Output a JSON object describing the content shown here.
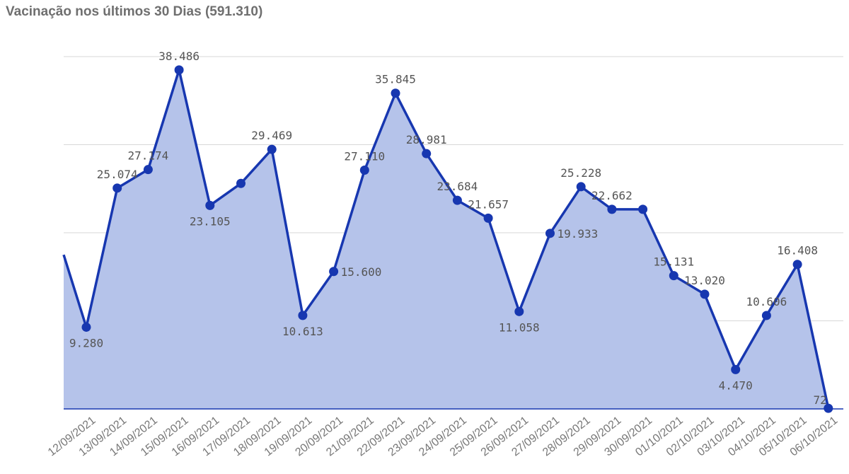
{
  "title": "Vacinação nos últimos 30 Dias (591.310)",
  "chart_data": {
    "type": "area",
    "title": "Vacinação nos últimos 30 Dias (591.310)",
    "xlabel": "",
    "ylabel": "",
    "ylim": [
      0,
      40000
    ],
    "grid": true,
    "legend": "none",
    "colors": {
      "line": "#1737b0",
      "fill": "#b5c3ea"
    },
    "categories": [
      "12/09/2021",
      "13/09/2021",
      "14/09/2021",
      "15/09/2021",
      "16/09/2021",
      "17/09/2021",
      "18/09/2021",
      "19/09/2021",
      "20/09/2021",
      "21/09/2021",
      "22/09/2021",
      "23/09/2021",
      "24/09/2021",
      "25/09/2021",
      "26/09/2021",
      "27/09/2021",
      "28/09/2021",
      "29/09/2021",
      "30/09/2021",
      "01/10/2021",
      "02/10/2021",
      "03/10/2021",
      "04/10/2021",
      "05/10/2021",
      "06/10/2021"
    ],
    "values": [
      9280,
      25074,
      27174,
      38486,
      23105,
      25600,
      29469,
      10613,
      15600,
      27110,
      35845,
      28981,
      23684,
      21657,
      11058,
      19933,
      25228,
      22662,
      22662,
      15131,
      13020,
      4470,
      10606,
      16408,
      72
    ],
    "labels": [
      "9.280",
      "25.074",
      "27.174",
      "38.486",
      "23.105",
      "",
      "29.469",
      "10.613",
      "15.600",
      "27.110",
      "35.845",
      "28.981",
      "23.684",
      "21.657",
      "11.058",
      "19.933",
      "25.228",
      "22.662",
      "",
      "15.131",
      "13.020",
      "4.470",
      "10.606",
      "16.408",
      "72"
    ],
    "left_edge_value": 17500
  }
}
